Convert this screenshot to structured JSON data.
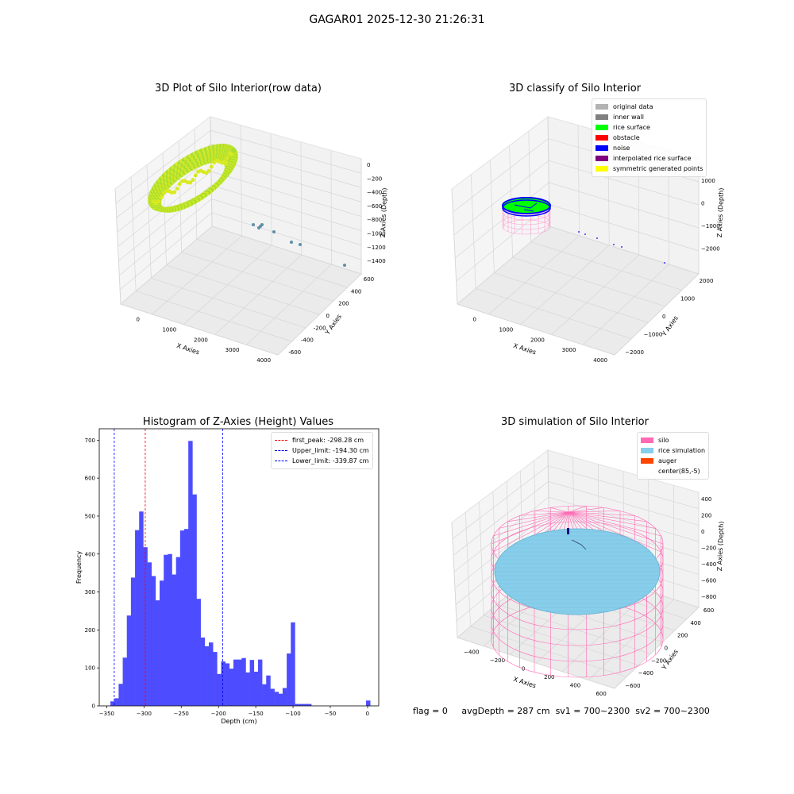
{
  "figure": {
    "suptitle": "GAGAR01 2025-12-30 21:26:31",
    "footer": {
      "flag": "flag = 0",
      "avg": "avgDepth = 287 cm",
      "sv1": "sv1 = 700~2300",
      "sv2": "sv2 = 700~2300"
    }
  },
  "chart_data": [
    {
      "type": "scatter",
      "title": "3D Plot of Silo Interior(row data)",
      "xlabel": "X Axies",
      "ylabel": "Y Axies",
      "zlabel": "Z Axies (Depth)",
      "x_ticks": [
        "0",
        "1000",
        "2000",
        "3000",
        "4000"
      ],
      "y_ticks": [
        "-600",
        "-400",
        "-200",
        "0",
        "200",
        "400",
        "600"
      ],
      "z_ticks": [
        "0",
        "−200",
        "−400",
        "−600",
        "−800",
        "−1000",
        "−1200",
        "−1400"
      ],
      "colors": {
        "ring_a": "#9fdc34",
        "ring_b": "#d9ea21",
        "outlier": "#5f8fa8"
      }
    },
    {
      "type": "scatter",
      "title": "3D classify of Silo Interior",
      "xlabel": "X Axies",
      "ylabel": "Y Axies",
      "zlabel": "Z Axies (Depth)",
      "x_ticks": [
        "0",
        "1000",
        "2000",
        "3000",
        "4000"
      ],
      "y_ticks": [
        "−2000",
        "−1000",
        "0",
        "1000",
        "2000"
      ],
      "z_ticks": [
        "1000",
        "0",
        "−1000",
        "−2000"
      ],
      "legend": [
        {
          "label": "original data",
          "color": "#b3b3b3"
        },
        {
          "label": "inner wall",
          "color": "#808080"
        },
        {
          "label": "rice surface",
          "color": "#00ff00"
        },
        {
          "label": "obstacle",
          "color": "#ff0000"
        },
        {
          "label": "noise",
          "color": "#0000ff"
        },
        {
          "label": "interpolated rice surface",
          "color": "#800080"
        },
        {
          "label": "symmetric generated points",
          "color": "#ffff00"
        }
      ]
    },
    {
      "type": "bar",
      "title": "Histogram of Z-Axies (Height) Values",
      "xlabel": "Depth (cm)",
      "ylabel": "Frequency",
      "xlim": [
        -360,
        15
      ],
      "ylim": [
        0,
        730
      ],
      "bin_width": 5.5,
      "bar_color": "#4d4dff",
      "x_ticks": [
        -350,
        -300,
        -250,
        -200,
        -150,
        -100,
        -50,
        0
      ],
      "y_ticks": [
        0,
        100,
        200,
        300,
        400,
        500,
        600,
        700
      ],
      "bins": [
        {
          "x": -345,
          "value": 12
        },
        {
          "x": -339.5,
          "value": 20
        },
        {
          "x": -334,
          "value": 58
        },
        {
          "x": -328.5,
          "value": 127
        },
        {
          "x": -323,
          "value": 238
        },
        {
          "x": -317.5,
          "value": 338
        },
        {
          "x": -312,
          "value": 463
        },
        {
          "x": -306.5,
          "value": 512
        },
        {
          "x": -301,
          "value": 418
        },
        {
          "x": -295.5,
          "value": 378
        },
        {
          "x": -290,
          "value": 342
        },
        {
          "x": -284.5,
          "value": 278
        },
        {
          "x": -279,
          "value": 330
        },
        {
          "x": -273.5,
          "value": 398
        },
        {
          "x": -268,
          "value": 400
        },
        {
          "x": -262.5,
          "value": 346
        },
        {
          "x": -257,
          "value": 392
        },
        {
          "x": -251.5,
          "value": 462
        },
        {
          "x": -246,
          "value": 466
        },
        {
          "x": -240.5,
          "value": 698
        },
        {
          "x": -235,
          "value": 557
        },
        {
          "x": -229.5,
          "value": 282
        },
        {
          "x": -224,
          "value": 180
        },
        {
          "x": -218.5,
          "value": 157
        },
        {
          "x": -213,
          "value": 167
        },
        {
          "x": -207.5,
          "value": 142
        },
        {
          "x": -202,
          "value": 84
        },
        {
          "x": -196.5,
          "value": 117
        },
        {
          "x": -191,
          "value": 112
        },
        {
          "x": -185.5,
          "value": 98
        },
        {
          "x": -180,
          "value": 122
        },
        {
          "x": -174.5,
          "value": 122
        },
        {
          "x": -169,
          "value": 126
        },
        {
          "x": -163.5,
          "value": 88
        },
        {
          "x": -158,
          "value": 121
        },
        {
          "x": -152.5,
          "value": 90
        },
        {
          "x": -147,
          "value": 122
        },
        {
          "x": -141.5,
          "value": 57
        },
        {
          "x": -136,
          "value": 80
        },
        {
          "x": -130.5,
          "value": 45
        },
        {
          "x": -125,
          "value": 37
        },
        {
          "x": -119.5,
          "value": 32
        },
        {
          "x": -114,
          "value": 47
        },
        {
          "x": -108.5,
          "value": 138
        },
        {
          "x": -103,
          "value": 220
        },
        {
          "x": -97.5,
          "value": 5
        },
        {
          "x": -92,
          "value": 5
        },
        {
          "x": -86.5,
          "value": 5
        },
        {
          "x": -81,
          "value": 5
        },
        {
          "x": -2,
          "value": 14
        }
      ],
      "vlines": [
        {
          "label": "first_peak: -298.28 cm",
          "x": -298.28,
          "color": "#ff0000"
        },
        {
          "label": "Upper_limit: -194.30 cm",
          "x": -194.3,
          "color": "#0000ff"
        },
        {
          "label": "Lower_limit: -339.87 cm",
          "x": -339.87,
          "color": "#0000ff"
        }
      ]
    },
    {
      "type": "scatter",
      "title": "3D simulation of Silo Interior",
      "xlabel": "X Axies",
      "ylabel": "Y Axies",
      "zlabel": "Z Axies (Depth)",
      "x_ticks": [
        "−400",
        "−200",
        "0",
        "200",
        "400",
        "600"
      ],
      "y_ticks": [
        "−600",
        "−400",
        "−200",
        "0",
        "200",
        "400",
        "600"
      ],
      "z_ticks": [
        "400",
        "200",
        "0",
        "−200",
        "−400",
        "−600",
        "−800"
      ],
      "legend": [
        {
          "label": "silo",
          "color": "#ff69b4"
        },
        {
          "label": "rice simulation",
          "color": "#87ceeb"
        },
        {
          "label": "auger",
          "color": "#ff4500"
        },
        {
          "label": "center(85,-5)",
          "color": ""
        }
      ]
    }
  ]
}
